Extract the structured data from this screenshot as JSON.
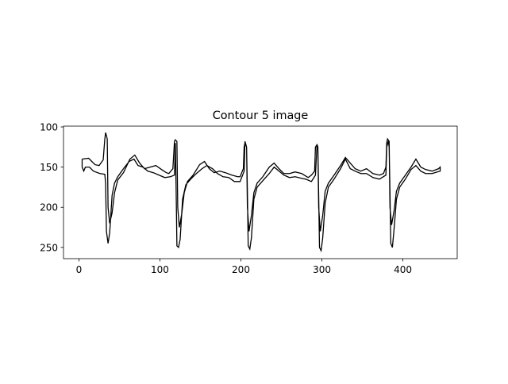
{
  "chart_data": {
    "type": "line",
    "title": "Contour 5 image",
    "x": [
      4,
      12,
      20,
      25,
      30,
      32,
      33,
      35,
      36,
      38,
      41,
      44,
      48,
      55,
      63,
      69,
      75,
      81,
      88,
      95,
      102,
      108,
      111,
      116,
      118,
      119,
      121,
      122,
      124,
      127,
      130,
      134,
      141,
      149,
      155,
      161,
      167,
      174,
      181,
      189,
      196,
      199,
      203,
      204,
      205,
      207,
      208,
      210,
      213,
      216,
      220,
      227,
      235,
      241,
      247,
      253,
      260,
      267,
      275,
      283,
      287,
      291,
      292,
      294,
      295,
      296,
      298,
      301,
      304,
      308,
      315,
      323,
      329,
      335,
      341,
      348,
      355,
      363,
      371,
      376,
      379,
      380,
      381,
      383,
      384,
      386,
      389,
      392,
      396,
      403,
      410,
      416,
      422,
      428,
      436,
      444,
      446,
      446,
      436,
      428,
      422,
      416,
      410,
      403,
      396,
      392,
      389,
      387,
      385,
      384,
      383,
      382,
      380,
      379,
      371,
      363,
      355,
      348,
      341,
      335,
      329,
      323,
      315,
      308,
      304,
      301,
      299,
      297,
      296,
      295,
      294,
      292,
      287,
      280,
      275,
      267,
      260,
      253,
      247,
      241,
      235,
      227,
      220,
      216,
      213,
      211,
      209,
      208,
      207,
      205,
      204,
      199,
      192,
      185,
      178,
      171,
      165,
      158,
      152,
      145,
      138,
      132,
      128,
      125,
      123,
      121,
      120,
      119,
      118,
      113,
      106,
      99,
      92,
      85,
      79,
      73,
      68,
      62,
      55,
      48,
      44,
      41,
      38,
      36,
      34,
      33,
      32,
      26,
      18,
      13,
      8,
      6,
      4,
      4
    ],
    "series": [
      {
        "color": "#000000",
        "values": [
          140,
          139,
          147,
          148,
          141,
          115,
          107,
          115,
          200,
          220,
          207,
          182,
          166,
          157,
          140,
          135,
          145,
          152,
          150,
          148,
          153,
          157,
          158,
          152,
          118,
          116,
          118,
          200,
          225,
          208,
          182,
          168,
          160,
          147,
          143,
          152,
          157,
          155,
          157,
          160,
          162,
          162,
          152,
          125,
          120,
          125,
          200,
          230,
          210,
          182,
          170,
          162,
          150,
          145,
          152,
          158,
          158,
          156,
          158,
          163,
          160,
          155,
          125,
          122,
          125,
          200,
          230,
          210,
          180,
          170,
          160,
          148,
          138,
          145,
          152,
          155,
          152,
          158,
          160,
          158,
          150,
          120,
          115,
          118,
          200,
          222,
          205,
          180,
          170,
          160,
          150,
          140,
          150,
          153,
          155,
          152,
          150,
          155,
          158,
          158,
          155,
          148,
          153,
          165,
          175,
          190,
          228,
          250,
          245,
          180,
          125,
          118,
          125,
          160,
          165,
          163,
          158,
          158,
          155,
          152,
          140,
          152,
          165,
          175,
          195,
          238,
          254,
          250,
          185,
          125,
          122,
          160,
          168,
          165,
          164,
          162,
          163,
          160,
          155,
          150,
          158,
          167,
          175,
          190,
          238,
          252,
          248,
          180,
          125,
          118,
          155,
          168,
          168,
          163,
          162,
          158,
          152,
          148,
          152,
          158,
          165,
          172,
          190,
          240,
          250,
          248,
          175,
          120,
          160,
          162,
          163,
          160,
          157,
          155,
          150,
          148,
          140,
          143,
          152,
          162,
          170,
          185,
          232,
          245,
          230,
          170,
          159,
          158,
          155,
          150,
          150,
          155,
          150,
          140
        ]
      }
    ],
    "xlim": [
      -19,
      467
    ],
    "ylim": [
      264,
      99
    ],
    "xticks": [
      0,
      100,
      200,
      300,
      400
    ],
    "yticks": [
      100,
      150,
      200,
      250
    ]
  }
}
